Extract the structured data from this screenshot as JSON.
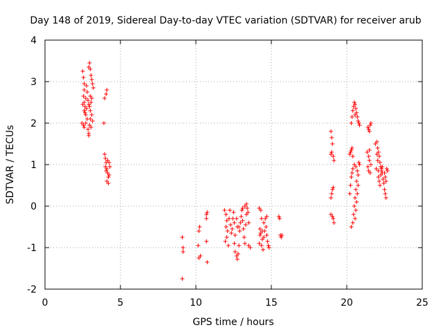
{
  "chart_data": {
    "type": "scatter",
    "title": "Day 148 of 2019, Sidereal Day-to-day VTEC variation (SDTVAR) for receiver arub",
    "xlabel": "GPS time / hours",
    "ylabel": "SDTVAR / TECUs",
    "xlim": [
      0,
      25
    ],
    "ylim": [
      -2,
      4
    ],
    "x_ticks": [
      0,
      5,
      10,
      15,
      20,
      25
    ],
    "x_tick_labels": [
      "0",
      "5",
      "10",
      "15",
      "20",
      "25"
    ],
    "y_ticks": [
      -2,
      -1,
      0,
      1,
      2,
      3,
      4
    ],
    "y_tick_labels": [
      "-2",
      "-1",
      "0",
      "1",
      "2",
      "3",
      "4"
    ],
    "grid": true,
    "marker": "plus",
    "series": [
      {
        "name": "SDTVAR",
        "color": "#ff0000",
        "points": [
          [
            2.5,
            3.25
          ],
          [
            2.55,
            3.1
          ],
          [
            2.6,
            2.95
          ],
          [
            2.6,
            2.8
          ],
          [
            2.55,
            2.65
          ],
          [
            2.6,
            2.5
          ],
          [
            2.65,
            2.4
          ],
          [
            2.6,
            2.3
          ],
          [
            2.7,
            2.2
          ],
          [
            2.75,
            2.35
          ],
          [
            2.7,
            2.6
          ],
          [
            2.8,
            2.75
          ],
          [
            2.75,
            2.9
          ],
          [
            2.85,
            2.55
          ],
          [
            2.9,
            2.45
          ],
          [
            2.8,
            2.1
          ],
          [
            2.55,
            1.95
          ],
          [
            2.6,
            1.9
          ],
          [
            2.7,
            2.0
          ],
          [
            2.85,
            1.85
          ],
          [
            2.9,
            1.75
          ],
          [
            2.95,
            1.95
          ],
          [
            3.0,
            2.1
          ],
          [
            3.0,
            2.3
          ],
          [
            3.05,
            2.5
          ],
          [
            3.1,
            2.6
          ],
          [
            3.0,
            2.65
          ],
          [
            2.95,
            2.4
          ],
          [
            3.1,
            2.2
          ],
          [
            3.15,
            2.05
          ],
          [
            3.05,
            1.9
          ],
          [
            2.9,
            1.7
          ],
          [
            2.95,
            3.45
          ],
          [
            3.0,
            3.3
          ],
          [
            3.05,
            3.15
          ],
          [
            3.1,
            3.05
          ],
          [
            3.15,
            2.95
          ],
          [
            3.2,
            2.85
          ],
          [
            2.9,
            3.35
          ],
          [
            2.65,
            2.25
          ],
          [
            2.5,
            2.45
          ],
          [
            2.45,
            2.0
          ],
          [
            3.95,
            2.6
          ],
          [
            4.05,
            2.7
          ],
          [
            4.1,
            2.8
          ],
          [
            3.9,
            2.0
          ],
          [
            3.95,
            1.25
          ],
          [
            4.0,
            1.15
          ],
          [
            4.05,
            1.05
          ],
          [
            4.0,
            0.95
          ],
          [
            4.1,
            0.9
          ],
          [
            4.15,
            0.8
          ],
          [
            4.2,
            0.7
          ],
          [
            4.1,
            0.6
          ],
          [
            4.2,
            0.55
          ],
          [
            4.25,
            0.75
          ],
          [
            4.3,
            0.95
          ],
          [
            4.25,
            1.05
          ],
          [
            4.15,
            1.1
          ],
          [
            4.05,
            0.85
          ],
          [
            9.1,
            -0.75
          ],
          [
            9.15,
            -1.0
          ],
          [
            9.15,
            -1.1
          ],
          [
            9.1,
            -1.75
          ],
          [
            10.2,
            -0.6
          ],
          [
            10.25,
            -0.5
          ],
          [
            10.15,
            -0.95
          ],
          [
            10.2,
            -1.25
          ],
          [
            10.3,
            -1.2
          ],
          [
            10.7,
            -0.2
          ],
          [
            10.75,
            -0.15
          ],
          [
            10.7,
            -0.3
          ],
          [
            10.7,
            -0.85
          ],
          [
            10.75,
            -1.35
          ],
          [
            11.9,
            -0.1
          ],
          [
            12.0,
            -0.2
          ],
          [
            12.05,
            -0.35
          ],
          [
            12.0,
            -0.5
          ],
          [
            12.1,
            -0.6
          ],
          [
            12.05,
            -0.75
          ],
          [
            11.95,
            -0.85
          ],
          [
            12.15,
            -0.95
          ],
          [
            12.2,
            -0.3
          ],
          [
            12.25,
            -0.1
          ],
          [
            12.3,
            -0.45
          ],
          [
            12.35,
            -0.65
          ],
          [
            12.4,
            -0.55
          ],
          [
            12.45,
            -0.3
          ],
          [
            12.5,
            -0.15
          ],
          [
            12.55,
            -0.4
          ],
          [
            12.6,
            -0.7
          ],
          [
            12.55,
            -0.9
          ],
          [
            12.6,
            -1.1
          ],
          [
            12.7,
            -1.2
          ],
          [
            12.75,
            -1.28
          ],
          [
            12.8,
            -1.15
          ],
          [
            12.85,
            -0.95
          ],
          [
            12.9,
            -0.6
          ],
          [
            12.95,
            -0.4
          ],
          [
            13.0,
            -0.25
          ],
          [
            13.05,
            -0.1
          ],
          [
            13.1,
            -0.35
          ],
          [
            13.15,
            -0.55
          ],
          [
            13.2,
            -0.75
          ],
          [
            13.25,
            -0.9
          ],
          [
            13.3,
            -0.45
          ],
          [
            13.35,
            -0.2
          ],
          [
            13.4,
            -0.05
          ],
          [
            13.45,
            -0.15
          ],
          [
            13.5,
            -0.4
          ],
          [
            13.5,
            -0.95
          ],
          [
            13.6,
            -1.0
          ],
          [
            13.1,
            -0.05
          ],
          [
            13.25,
            0.0
          ],
          [
            13.35,
            0.05
          ],
          [
            12.85,
            -0.5
          ],
          [
            12.7,
            -0.3
          ],
          [
            12.75,
            -0.5
          ],
          [
            14.2,
            -0.05
          ],
          [
            14.3,
            -0.1
          ],
          [
            14.35,
            -0.3
          ],
          [
            14.25,
            -0.55
          ],
          [
            14.3,
            -0.65
          ],
          [
            14.4,
            -0.8
          ],
          [
            14.35,
            -0.95
          ],
          [
            14.45,
            -1.05
          ],
          [
            14.5,
            -0.75
          ],
          [
            14.55,
            -0.6
          ],
          [
            14.5,
            -0.4
          ],
          [
            14.6,
            -0.3
          ],
          [
            14.65,
            -0.5
          ],
          [
            14.7,
            -0.7
          ],
          [
            14.75,
            -0.85
          ],
          [
            14.8,
            -0.95
          ],
          [
            14.85,
            -1.0
          ],
          [
            14.7,
            -0.25
          ],
          [
            14.4,
            -0.6
          ],
          [
            14.2,
            -0.9
          ],
          [
            14.25,
            -0.7
          ],
          [
            15.5,
            -0.25
          ],
          [
            15.55,
            -0.3
          ],
          [
            15.6,
            -0.7
          ],
          [
            15.65,
            -0.75
          ],
          [
            15.7,
            -0.7
          ],
          [
            18.95,
            1.8
          ],
          [
            19.0,
            1.65
          ],
          [
            19.05,
            1.5
          ],
          [
            19.0,
            1.3
          ],
          [
            19.1,
            1.2
          ],
          [
            19.15,
            1.1
          ],
          [
            18.95,
            1.25
          ],
          [
            18.95,
            0.2
          ],
          [
            19.0,
            0.3
          ],
          [
            19.05,
            0.4
          ],
          [
            19.1,
            0.45
          ],
          [
            18.95,
            -0.2
          ],
          [
            19.05,
            -0.25
          ],
          [
            19.1,
            -0.3
          ],
          [
            19.15,
            -0.4
          ],
          [
            20.2,
            1.25
          ],
          [
            20.25,
            1.3
          ],
          [
            20.3,
            1.35
          ],
          [
            20.35,
            1.4
          ],
          [
            20.4,
            1.2
          ],
          [
            20.3,
            2.0
          ],
          [
            20.35,
            2.15
          ],
          [
            20.4,
            2.3
          ],
          [
            20.45,
            2.4
          ],
          [
            20.5,
            2.5
          ],
          [
            20.55,
            2.45
          ],
          [
            20.6,
            2.35
          ],
          [
            20.65,
            2.25
          ],
          [
            20.7,
            2.15
          ],
          [
            20.75,
            2.05
          ],
          [
            20.8,
            2.0
          ],
          [
            20.85,
            1.95
          ],
          [
            20.55,
            2.2
          ],
          [
            20.2,
            0.3
          ],
          [
            20.25,
            0.5
          ],
          [
            20.3,
            0.7
          ],
          [
            20.35,
            0.8
          ],
          [
            20.4,
            0.9
          ],
          [
            20.5,
            1.0
          ],
          [
            20.6,
            0.95
          ],
          [
            20.7,
            0.85
          ],
          [
            20.75,
            0.75
          ],
          [
            20.65,
            0.6
          ],
          [
            20.6,
            0.4
          ],
          [
            20.55,
            0.2
          ],
          [
            20.5,
            0.0
          ],
          [
            20.45,
            -0.2
          ],
          [
            20.4,
            -0.4
          ],
          [
            20.3,
            -0.5
          ],
          [
            20.8,
            1.05
          ],
          [
            20.85,
            1.0
          ],
          [
            20.75,
            0.5
          ],
          [
            20.7,
            0.3
          ],
          [
            20.65,
            0.1
          ],
          [
            20.6,
            -0.1
          ],
          [
            20.55,
            -0.3
          ],
          [
            21.4,
            1.9
          ],
          [
            21.45,
            1.85
          ],
          [
            21.5,
            1.8
          ],
          [
            21.55,
            1.95
          ],
          [
            21.6,
            2.0
          ],
          [
            21.35,
            1.3
          ],
          [
            21.45,
            1.2
          ],
          [
            21.5,
            1.1
          ],
          [
            21.4,
            0.95
          ],
          [
            21.45,
            0.85
          ],
          [
            21.55,
            0.8
          ],
          [
            21.6,
            1.0
          ],
          [
            21.5,
            1.35
          ],
          [
            21.9,
            1.5
          ],
          [
            22.0,
            1.55
          ],
          [
            22.05,
            1.4
          ],
          [
            22.1,
            1.3
          ],
          [
            22.15,
            1.2
          ],
          [
            22.2,
            1.05
          ],
          [
            22.25,
            0.95
          ],
          [
            22.3,
            0.9
          ],
          [
            22.35,
            0.8
          ],
          [
            22.4,
            0.65
          ],
          [
            22.45,
            0.55
          ],
          [
            22.5,
            0.4
          ],
          [
            22.55,
            0.3
          ],
          [
            22.6,
            0.2
          ],
          [
            22.1,
            0.7
          ],
          [
            22.15,
            0.6
          ],
          [
            22.2,
            0.5
          ],
          [
            22.25,
            0.75
          ],
          [
            22.3,
            0.85
          ],
          [
            22.35,
            0.95
          ],
          [
            22.5,
            0.8
          ],
          [
            22.55,
            0.7
          ],
          [
            22.6,
            0.6
          ],
          [
            22.65,
            0.9
          ],
          [
            22.7,
            0.85
          ],
          [
            22.0,
            1.25
          ],
          [
            22.05,
            1.1
          ],
          [
            21.95,
            0.9
          ],
          [
            22.1,
            0.85
          ]
        ]
      }
    ]
  }
}
